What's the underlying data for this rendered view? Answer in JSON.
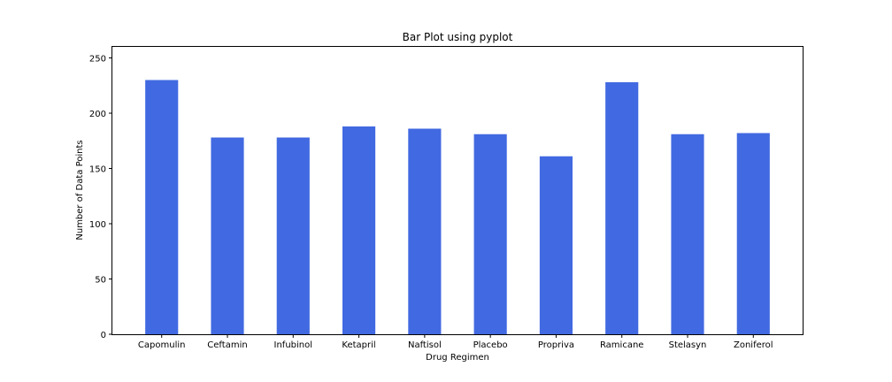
{
  "chart_data": {
    "type": "bar",
    "title": "Bar Plot using pyplot",
    "xlabel": "Drug Regimen",
    "ylabel": "Number of Data Points",
    "categories": [
      "Capomulin",
      "Ceftamin",
      "Infubinol",
      "Ketapril",
      "Naftisol",
      "Placebo",
      "Propriva",
      "Ramicane",
      "Stelasyn",
      "Zoniferol"
    ],
    "values": [
      230,
      178,
      178,
      188,
      186,
      181,
      161,
      228,
      181,
      182
    ],
    "ylim": [
      0,
      260
    ],
    "yticks": [
      0,
      50,
      100,
      150,
      200,
      250
    ],
    "grid": false,
    "bar_color": "#4169e1"
  }
}
